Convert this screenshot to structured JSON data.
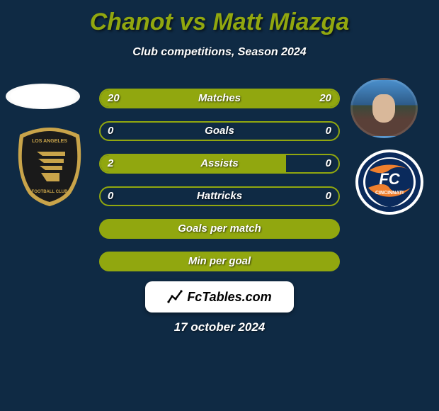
{
  "title": "Chanot vs Matt Miazga",
  "subtitle": "Club competitions, Season 2024",
  "date": "17 october 2024",
  "badge_text": "FcTables.com",
  "colors": {
    "accent": "#91a70f",
    "bg": "#0f2a44",
    "text": "#ffffff",
    "badge_bg": "#ffffff",
    "badge_text": "#000000"
  },
  "stat_rows": [
    {
      "label": "Matches",
      "left_val": "20",
      "right_val": "20",
      "left_pct": 50,
      "right_pct": 50
    },
    {
      "label": "Goals",
      "left_val": "0",
      "right_val": "0",
      "left_pct": 0,
      "right_pct": 0
    },
    {
      "label": "Assists",
      "left_val": "2",
      "right_val": "0",
      "left_pct": 78,
      "right_pct": 0
    },
    {
      "label": "Hattricks",
      "left_val": "0",
      "right_val": "0",
      "left_pct": 0,
      "right_pct": 0
    }
  ],
  "full_rows": [
    {
      "label": "Goals per match"
    },
    {
      "label": "Min per goal"
    }
  ],
  "crest_left": {
    "name": "LAFC",
    "lines": [
      "LOS ANGELES",
      "FOOTBALL CLUB"
    ],
    "colors": {
      "outer": "#c9a44a",
      "inner": "#1a1a1a",
      "wing": "#c9a44a"
    }
  },
  "crest_right": {
    "name": "FC Cincinnati",
    "initials": "FC",
    "city": "CINCINNATI",
    "colors": {
      "ring": "#0a2a5c",
      "ring2": "#ffffff",
      "inner": "#0a2a5c",
      "accent": "#ef7f2e"
    }
  }
}
